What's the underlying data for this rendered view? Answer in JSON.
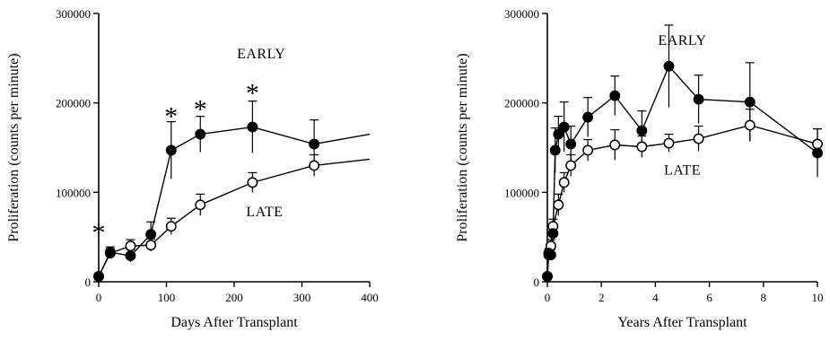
{
  "chart_data": [
    {
      "type": "line",
      "xlabel": "Days After Transplant",
      "ylabel": "Proliferation (counts per minute)",
      "xlim": [
        0,
        400
      ],
      "ylim": [
        0,
        300000
      ],
      "x_ticks": [
        0,
        100,
        200,
        300,
        400
      ],
      "x_tick_labels": [
        "0",
        "100",
        "200",
        "300",
        "400"
      ],
      "y_ticks": [
        0,
        100000,
        200000,
        300000
      ],
      "y_tick_labels": [
        "0",
        "100000",
        "200000",
        "300000"
      ],
      "grid": false,
      "series": [
        {
          "name": "EARLY",
          "marker": "filled-circle",
          "color": "#000000",
          "points": [
            {
              "x": 0,
              "y": 6000,
              "err": 3000
            },
            {
              "x": 17,
              "y": 33000,
              "err": 6000
            },
            {
              "x": 47,
              "y": 29000,
              "err": 7000
            },
            {
              "x": 77,
              "y": 53000,
              "err": 14000
            },
            {
              "x": 107,
              "y": 147000,
              "err": 32000
            },
            {
              "x": 150,
              "y": 165000,
              "err": 20000
            },
            {
              "x": 227,
              "y": 173000,
              "err": 29000
            },
            {
              "x": 318,
              "y": 154000,
              "err": 27000
            }
          ],
          "trend_end": {
            "x": 400,
            "y": 165000
          }
        },
        {
          "name": "LATE",
          "marker": "open-circle",
          "color": "#000000",
          "points": [
            {
              "x": 0,
              "y": 6000,
              "err": 2000
            },
            {
              "x": 17,
              "y": 32000,
              "err": 5000
            },
            {
              "x": 47,
              "y": 40000,
              "err": 7000
            },
            {
              "x": 77,
              "y": 41000,
              "err": 7000
            },
            {
              "x": 107,
              "y": 62000,
              "err": 9000
            },
            {
              "x": 150,
              "y": 86000,
              "err": 12000
            },
            {
              "x": 227,
              "y": 111000,
              "err": 11000
            },
            {
              "x": 318,
              "y": 130000,
              "err": 12000
            }
          ],
          "trend_end": {
            "x": 400,
            "y": 137000
          }
        }
      ],
      "annotations": [
        {
          "text": "EARLY",
          "x": 240,
          "y": 250000
        },
        {
          "text": "LATE",
          "x": 245,
          "y": 73000
        }
      ],
      "significance_markers": [
        {
          "text": "*",
          "x": 0,
          "y": 55000
        },
        {
          "text": "*",
          "x": 107,
          "y": 185000
        },
        {
          "text": "*",
          "x": 150,
          "y": 193000
        },
        {
          "text": "*",
          "x": 227,
          "y": 211000
        }
      ]
    },
    {
      "type": "line",
      "xlabel": "Years After Transplant",
      "ylabel": "Proliferation (counts per minute)",
      "xlim": [
        0,
        10
      ],
      "ylim": [
        0,
        300000
      ],
      "x_ticks": [
        0,
        2,
        4,
        6,
        8,
        10
      ],
      "x_tick_labels": [
        "0",
        "2",
        "4",
        "6",
        "8",
        "10"
      ],
      "y_ticks": [
        0,
        100000,
        200000,
        300000
      ],
      "y_tick_labels": [
        "0",
        "100000",
        "200000",
        "300000"
      ],
      "grid": false,
      "series": [
        {
          "name": "EARLY",
          "marker": "filled-circle",
          "color": "#000000",
          "points": [
            {
              "x": 0.0,
              "y": 6000,
              "err": 2000
            },
            {
              "x": 0.05,
              "y": 32000,
              "err": 5000
            },
            {
              "x": 0.13,
              "y": 30000,
              "err": 6000
            },
            {
              "x": 0.21,
              "y": 54000,
              "err": 10000
            },
            {
              "x": 0.29,
              "y": 147000,
              "err": 25000
            },
            {
              "x": 0.41,
              "y": 165000,
              "err": 20000
            },
            {
              "x": 0.62,
              "y": 173000,
              "err": 28000
            },
            {
              "x": 0.87,
              "y": 154000,
              "err": 20000
            },
            {
              "x": 1.5,
              "y": 184000,
              "err": 22000
            },
            {
              "x": 2.5,
              "y": 208000,
              "err": 22000
            },
            {
              "x": 3.5,
              "y": 169000,
              "err": 22000
            },
            {
              "x": 4.5,
              "y": 241000,
              "err": 46000
            },
            {
              "x": 5.6,
              "y": 204000,
              "err": 27000
            },
            {
              "x": 7.5,
              "y": 201000,
              "err": 44000
            },
            {
              "x": 10.0,
              "y": 144000,
              "err": 27000
            }
          ]
        },
        {
          "name": "LATE",
          "marker": "open-circle",
          "color": "#000000",
          "points": [
            {
              "x": 0.0,
              "y": 6000,
              "err": 2000
            },
            {
              "x": 0.05,
              "y": 30000,
              "err": 5000
            },
            {
              "x": 0.13,
              "y": 40000,
              "err": 7000
            },
            {
              "x": 0.21,
              "y": 62000,
              "err": 8000
            },
            {
              "x": 0.41,
              "y": 86000,
              "err": 12000
            },
            {
              "x": 0.62,
              "y": 111000,
              "err": 11000
            },
            {
              "x": 0.87,
              "y": 130000,
              "err": 12000
            },
            {
              "x": 1.5,
              "y": 147000,
              "err": 12000
            },
            {
              "x": 2.5,
              "y": 153000,
              "err": 17000
            },
            {
              "x": 3.5,
              "y": 151000,
              "err": 12000
            },
            {
              "x": 4.5,
              "y": 155000,
              "err": 10000
            },
            {
              "x": 5.6,
              "y": 160000,
              "err": 14000
            },
            {
              "x": 7.5,
              "y": 175000,
              "err": 18000
            },
            {
              "x": 10.0,
              "y": 154000,
              "err": 17000
            }
          ]
        }
      ],
      "annotations": [
        {
          "text": "EARLY",
          "x": 5.0,
          "y": 265000
        },
        {
          "text": "LATE",
          "x": 5.0,
          "y": 120000
        }
      ]
    }
  ]
}
